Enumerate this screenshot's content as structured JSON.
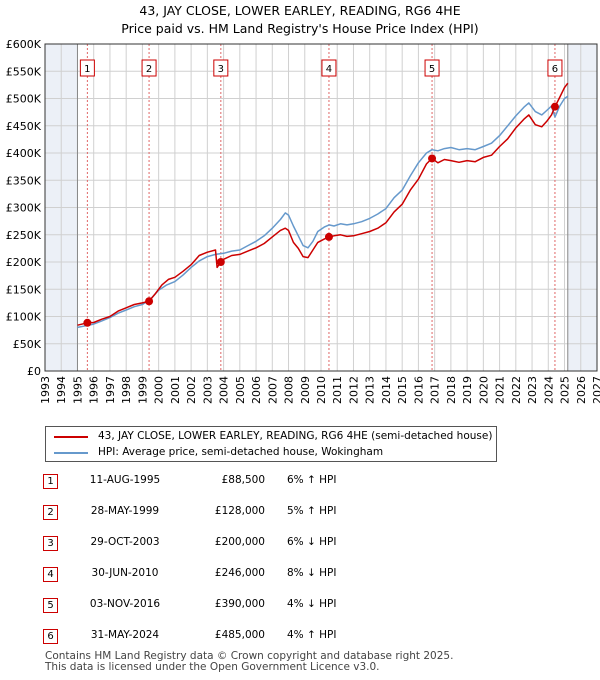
{
  "title_line1": "43, JAY CLOSE, LOWER EARLEY, READING, RG6 4HE",
  "title_line2": "Price paid vs. HM Land Registry's House Price Index (HPI)",
  "colors": {
    "property": "#cc0000",
    "hpi": "#6699cc",
    "marker": "#cc0000",
    "shade": "#dde4f0",
    "grid": "#d0d0d0"
  },
  "legend": {
    "property_label": "43, JAY CLOSE, LOWER EARLEY, READING, RG6 4HE (semi-detached house)",
    "hpi_label": "HPI: Average price, semi-detached house, Wokingham"
  },
  "sales": [
    {
      "num": "1",
      "date": "11-AUG-1995",
      "price": "£88,500",
      "hpi": "6% ↑ HPI"
    },
    {
      "num": "2",
      "date": "28-MAY-1999",
      "price": "£128,000",
      "hpi": "5% ↑ HPI"
    },
    {
      "num": "3",
      "date": "29-OCT-2003",
      "price": "£200,000",
      "hpi": "6% ↓ HPI"
    },
    {
      "num": "4",
      "date": "30-JUN-2010",
      "price": "£246,000",
      "hpi": "8% ↓ HPI"
    },
    {
      "num": "5",
      "date": "03-NOV-2016",
      "price": "£390,000",
      "hpi": "4% ↓ HPI"
    },
    {
      "num": "6",
      "date": "31-MAY-2024",
      "price": "£485,000",
      "hpi": "4% ↑ HPI"
    }
  ],
  "footer_line1": "Contains HM Land Registry data © Crown copyright and database right 2025.",
  "footer_line2": "This data is licensed under the Open Government Licence v3.0.",
  "chart_data": {
    "type": "line",
    "title": "43, JAY CLOSE, LOWER EARLEY, READING, RG6 4HE — Price paid vs. HM Land Registry's House Price Index (HPI)",
    "xlim": [
      1993,
      2027
    ],
    "ylim": [
      0,
      600000
    ],
    "x_ticks": [
      1993,
      1994,
      1995,
      1996,
      1997,
      1998,
      1999,
      2000,
      2001,
      2002,
      2003,
      2004,
      2005,
      2006,
      2007,
      2008,
      2009,
      2010,
      2011,
      2012,
      2013,
      2014,
      2015,
      2016,
      2017,
      2018,
      2019,
      2020,
      2021,
      2022,
      2023,
      2024,
      2025,
      2026,
      2027
    ],
    "y_ticks": [
      0,
      50000,
      100000,
      150000,
      200000,
      250000,
      300000,
      350000,
      400000,
      450000,
      500000,
      550000,
      600000
    ],
    "y_tick_labels": [
      "£0",
      "£50K",
      "£100K",
      "£150K",
      "£200K",
      "£250K",
      "£300K",
      "£350K",
      "£400K",
      "£450K",
      "£500K",
      "£550K",
      "£600K"
    ],
    "shaded_regions": [
      [
        1993,
        1995.0
      ],
      [
        2025.2,
        2027
      ]
    ],
    "data_start": 1995.0,
    "data_end": 2025.2,
    "series": [
      {
        "name": "43, JAY CLOSE, LOWER EARLEY, READING, RG6 4HE (semi-detached house)",
        "x": [
          1995.0,
          1995.61,
          1996.0,
          1996.5,
          1997.0,
          1997.5,
          1998.0,
          1998.5,
          1999.0,
          1999.41,
          1999.8,
          2000.2,
          2000.6,
          2001.0,
          2001.5,
          2002.0,
          2002.5,
          2003.0,
          2003.5,
          2003.6,
          2003.83,
          2004.0,
          2004.5,
          2005.0,
          2005.5,
          2006.0,
          2006.5,
          2007.0,
          2007.5,
          2007.8,
          2008.0,
          2008.3,
          2008.6,
          2008.9,
          2009.2,
          2009.5,
          2009.8,
          2010.2,
          2010.49,
          2010.8,
          2011.2,
          2011.6,
          2012.0,
          2012.5,
          2013.0,
          2013.5,
          2014.0,
          2014.5,
          2015.0,
          2015.5,
          2016.0,
          2016.5,
          2016.84,
          2017.2,
          2017.6,
          2018.0,
          2018.5,
          2019.0,
          2019.5,
          2020.0,
          2020.5,
          2021.0,
          2021.5,
          2022.0,
          2022.5,
          2022.8,
          2023.2,
          2023.6,
          2023.9,
          2024.2,
          2024.41,
          2024.7,
          2025.0,
          2025.2
        ],
        "y": [
          84000,
          88500,
          89000,
          95000,
          100000,
          110000,
          116000,
          122000,
          125000,
          128000,
          142000,
          158000,
          168000,
          172000,
          183000,
          195000,
          212000,
          218000,
          222000,
          190000,
          200000,
          205000,
          212000,
          214000,
          220000,
          226000,
          234000,
          246000,
          258000,
          262000,
          258000,
          236000,
          225000,
          210000,
          208000,
          222000,
          236000,
          242000,
          246000,
          248000,
          250000,
          247000,
          248000,
          252000,
          256000,
          262000,
          272000,
          292000,
          306000,
          332000,
          352000,
          380000,
          390000,
          382000,
          388000,
          386000,
          383000,
          386000,
          384000,
          392000,
          396000,
          412000,
          426000,
          446000,
          462000,
          470000,
          452000,
          448000,
          458000,
          470000,
          485000,
          502000,
          520000,
          528000
        ]
      },
      {
        "name": "HPI: Average price, semi-detached house, Wokingham",
        "x": [
          1995.0,
          1995.5,
          1996.0,
          1996.5,
          1997.0,
          1997.5,
          1998.0,
          1998.5,
          1999.0,
          1999.5,
          2000.0,
          2000.5,
          2001.0,
          2001.5,
          2002.0,
          2002.5,
          2003.0,
          2003.5,
          2004.0,
          2004.5,
          2005.0,
          2005.5,
          2006.0,
          2006.5,
          2007.0,
          2007.5,
          2007.8,
          2008.0,
          2008.3,
          2008.6,
          2008.9,
          2009.2,
          2009.5,
          2009.8,
          2010.2,
          2010.5,
          2010.8,
          2011.2,
          2011.6,
          2012.0,
          2012.5,
          2013.0,
          2013.5,
          2014.0,
          2014.5,
          2015.0,
          2015.5,
          2016.0,
          2016.5,
          2016.84,
          2017.2,
          2017.6,
          2018.0,
          2018.5,
          2019.0,
          2019.5,
          2020.0,
          2020.5,
          2021.0,
          2021.5,
          2022.0,
          2022.5,
          2022.8,
          2023.2,
          2023.6,
          2023.9,
          2024.2,
          2024.41,
          2024.7,
          2025.0,
          2025.2
        ],
        "y": [
          80000,
          83000,
          86000,
          92000,
          98000,
          106000,
          112000,
          118000,
          122000,
          132000,
          148000,
          158000,
          164000,
          176000,
          190000,
          202000,
          210000,
          214000,
          216000,
          220000,
          222000,
          230000,
          238000,
          248000,
          262000,
          278000,
          290000,
          286000,
          266000,
          248000,
          230000,
          226000,
          238000,
          256000,
          264000,
          268000,
          266000,
          270000,
          268000,
          270000,
          274000,
          280000,
          288000,
          298000,
          318000,
          332000,
          358000,
          382000,
          400000,
          406000,
          404000,
          408000,
          410000,
          406000,
          408000,
          406000,
          412000,
          418000,
          432000,
          450000,
          468000,
          484000,
          492000,
          476000,
          470000,
          478000,
          486000,
          466000,
          486000,
          500000,
          504000
        ]
      }
    ],
    "sales": [
      {
        "label": "1",
        "x": 1995.61,
        "y": 88500
      },
      {
        "label": "2",
        "x": 1999.41,
        "y": 128000
      },
      {
        "label": "3",
        "x": 2003.83,
        "y": 200000
      },
      {
        "label": "4",
        "x": 2010.49,
        "y": 246000
      },
      {
        "label": "5",
        "x": 2016.84,
        "y": 390000
      },
      {
        "label": "6",
        "x": 2024.41,
        "y": 485000
      }
    ]
  }
}
